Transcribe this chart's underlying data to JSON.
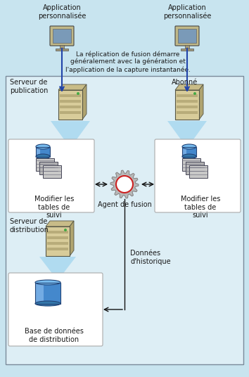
{
  "fig_width": 3.54,
  "fig_height": 5.36,
  "dpi": 100,
  "bg_light_blue": "#c8e4ef",
  "bg_inner": "#ddeef5",
  "white": "#ffffff",
  "text_color": "#1a1a1a",
  "arrow_blue": "#2244aa",
  "arrow_black": "#111111",
  "border_color": "#7a8a9a",
  "title_text": "La réplication de fusion démarre\ngénéralement avec la génération et\nl'application de la capture instantanée.",
  "label_app_left": "Application\npersonnalisée",
  "label_app_right": "Application\npersonnalisée",
  "label_pub": "Serveur de\npublication",
  "label_sub": "Abonné",
  "label_track_left": "Modifier les\ntables de\nsuivi",
  "label_track_right": "Modifier les\ntables de\nsuivi",
  "label_dist_server": "Serveur de\ndistribution",
  "label_agent": "Agent de fusion",
  "label_history": "Données\nd'historique",
  "label_db": "Base de données\nde distribution",
  "server_body_color": "#d8cc9a",
  "server_stripe_color": "#b8ac7a",
  "server_dark": "#555544",
  "db_blue1": "#5599cc",
  "db_blue2": "#3377aa",
  "db_blue3": "#4488bb",
  "gear_color": "#b8b8b8",
  "gear_edge": "#888888"
}
